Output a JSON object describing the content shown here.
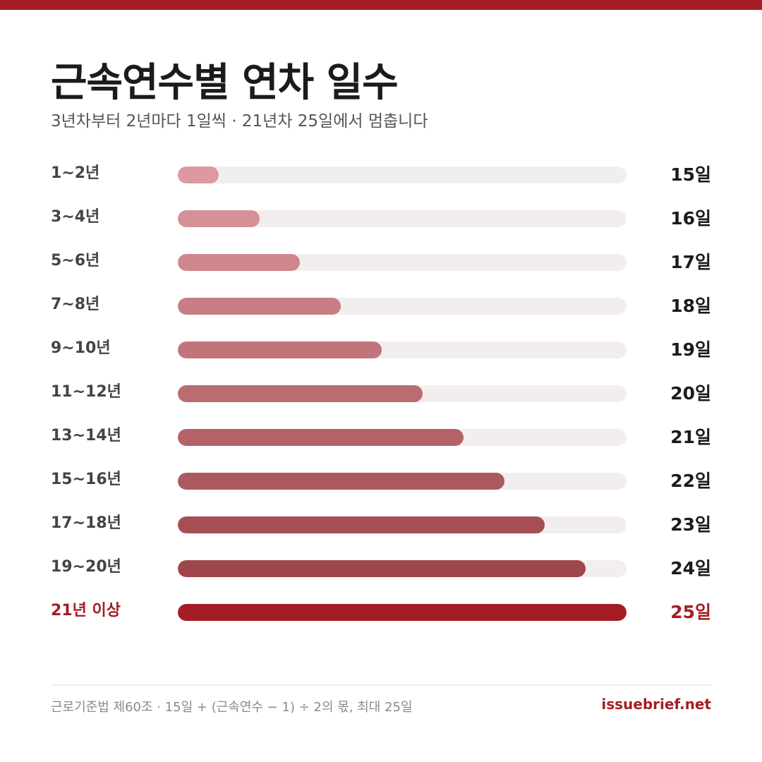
{
  "header": {
    "title": "근속연수별 연차 일수",
    "subtitle": "3년차부터 2년마다 1일씩 · 21년차 25일에서 멈춥니다"
  },
  "chart_data": {
    "type": "bar",
    "orientation": "horizontal",
    "categories": [
      "1~2년",
      "3~4년",
      "5~6년",
      "7~8년",
      "9~10년",
      "11~12년",
      "13~14년",
      "15~16년",
      "17~18년",
      "19~20년",
      "21년 이상"
    ],
    "values": [
      15,
      16,
      17,
      18,
      19,
      20,
      21,
      22,
      23,
      24,
      25
    ],
    "value_labels": [
      "15일",
      "16일",
      "17일",
      "18일",
      "19일",
      "20일",
      "21일",
      "22일",
      "23일",
      "24일",
      "25일"
    ],
    "xlim": [
      14,
      25
    ],
    "highlight_index": 10,
    "colors": [
      "#dc9aa0",
      "#d59196",
      "#ce878d",
      "#c77e84",
      "#c1757b",
      "#ba6c71",
      "#b36268",
      "#ac595f",
      "#a54f55",
      "#9e464c",
      "#a51d24"
    ],
    "track_color": "#f3eeee"
  },
  "footer": {
    "note": "근로기준법 제60조 · 15일 + (근속연수 − 1) ÷ 2의 몫, 최대 25일",
    "brand": "issuebrief.net"
  }
}
